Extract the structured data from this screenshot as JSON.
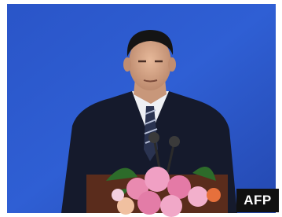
{
  "watermark": "AFP"
}
